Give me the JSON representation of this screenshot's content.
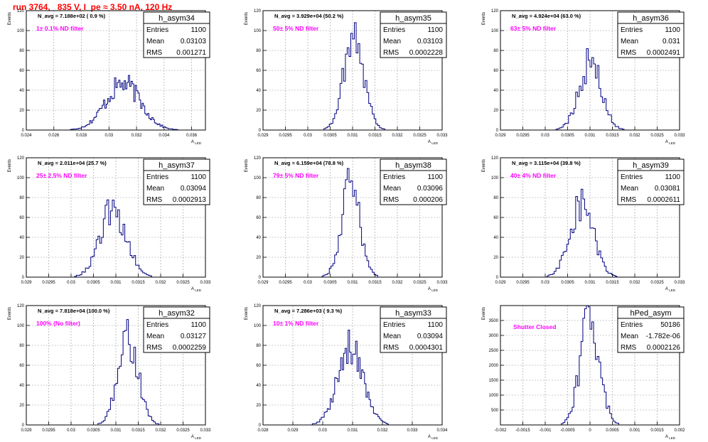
{
  "page": {
    "title": "run 3764,   835 V, I_pe ≈ 3.50 nA, 120 Hz"
  },
  "colors": {
    "title": "#ff0000",
    "histogram": "#000080",
    "annotation": "#ff00ff",
    "grid": "#999999"
  },
  "chart_data": [
    {
      "type": "histogram",
      "name": "h_asym34",
      "title": "",
      "xlabel": "A_LED",
      "ylabel": "Events",
      "xlim": [
        0.024,
        0.037
      ],
      "ylim": [
        0,
        120
      ],
      "x_ticks": [
        "0.024",
        "0.026",
        "0.028",
        "0.03",
        "0.032",
        "0.034",
        "0.036"
      ],
      "x_tick_values": [
        0.024,
        0.026,
        0.028,
        0.03,
        0.032,
        0.034,
        0.036
      ],
      "y_ticks": [
        0,
        20,
        40,
        60,
        80,
        100,
        120
      ],
      "stats": [
        [
          "Entries",
          "1100"
        ],
        [
          "Mean",
          "0.03103"
        ],
        [
          "RMS",
          "0.001271"
        ]
      ],
      "navg": "N_avg = 7.188e+02 ( 0.9 %)",
      "filter": "1± 0.1% ND filter",
      "grid": true,
      "mean": 0.03103,
      "rms": 0.001271,
      "peak": 48,
      "n_bins": 130
    },
    {
      "type": "histogram",
      "name": "h_asym35",
      "title": "",
      "xlabel": "A_LED",
      "ylabel": "Events",
      "xlim": [
        0.029,
        0.033
      ],
      "ylim": [
        0,
        120
      ],
      "x_ticks": [
        "0.029",
        "0.0295",
        "0.03",
        "0.0305",
        "0.031",
        "0.0315",
        "0.032",
        "0.0325",
        "0.033"
      ],
      "x_tick_values": [
        0.029,
        0.0295,
        0.03,
        0.0305,
        0.031,
        0.0315,
        0.032,
        0.0325,
        0.033
      ],
      "y_ticks": [
        0,
        20,
        40,
        60,
        80,
        100,
        120
      ],
      "stats": [
        [
          "Entries",
          "1100"
        ],
        [
          "Mean",
          "0.03103"
        ],
        [
          "RMS",
          "0.0002228"
        ]
      ],
      "navg": "N_avg = 3.929e+04 (50.2 %)",
      "filter": "50± 5% ND filter",
      "grid": true,
      "mean": 0.03103,
      "rms": 0.0002228,
      "peak": 100,
      "n_bins": 100
    },
    {
      "type": "histogram",
      "name": "h_asym36",
      "title": "",
      "xlabel": "A_LED",
      "ylabel": "Events",
      "xlim": [
        0.029,
        0.033
      ],
      "ylim": [
        0,
        120
      ],
      "x_ticks": [
        "0.029",
        "0.0295",
        "0.03",
        "0.0305",
        "0.031",
        "0.0315",
        "0.032",
        "0.0325",
        "0.033"
      ],
      "x_tick_values": [
        0.029,
        0.0295,
        0.03,
        0.0305,
        0.031,
        0.0315,
        0.032,
        0.0325,
        0.033
      ],
      "y_ticks": [
        0,
        20,
        40,
        60,
        80,
        100,
        120
      ],
      "stats": [
        [
          "Entries",
          "1100"
        ],
        [
          "Mean",
          "0.031"
        ],
        [
          "RMS",
          "0.0002491"
        ]
      ],
      "navg": "N_avg = 4.924e+04 (63.0 %)",
      "filter": "63± 5% ND filter",
      "grid": true,
      "mean": 0.031,
      "rms": 0.0002491,
      "peak": 70,
      "n_bins": 100
    },
    {
      "type": "histogram",
      "name": "h_asym37",
      "title": "",
      "xlabel": "A_LED",
      "ylabel": "Events",
      "xlim": [
        0.029,
        0.033
      ],
      "ylim": [
        0,
        120
      ],
      "x_ticks": [
        "0.029",
        "0.0295",
        "0.03",
        "0.0305",
        "0.031",
        "0.0315",
        "0.032",
        "0.0325",
        "0.033"
      ],
      "x_tick_values": [
        0.029,
        0.0295,
        0.03,
        0.0305,
        0.031,
        0.0315,
        0.032,
        0.0325,
        0.033
      ],
      "y_ticks": [
        0,
        20,
        40,
        60,
        80,
        100,
        120
      ],
      "stats": [
        [
          "Entries",
          "1100"
        ],
        [
          "Mean",
          "0.03094"
        ],
        [
          "RMS",
          "0.0002913"
        ]
      ],
      "navg": "N_avg = 2.011e+04 (25.7 %)",
      "filter": "25± 2.5% ND filter",
      "grid": true,
      "mean": 0.03094,
      "rms": 0.0002913,
      "peak": 70,
      "n_bins": 100
    },
    {
      "type": "histogram",
      "name": "h_asym38",
      "title": "",
      "xlabel": "A_LED",
      "ylabel": "Events",
      "xlim": [
        0.029,
        0.033
      ],
      "ylim": [
        0,
        120
      ],
      "x_ticks": [
        "0.029",
        "0.0295",
        "0.03",
        "0.0305",
        "0.031",
        "0.0315",
        "0.032",
        "0.0325",
        "0.033"
      ],
      "x_tick_values": [
        0.029,
        0.0295,
        0.03,
        0.0305,
        0.031,
        0.0315,
        0.032,
        0.0325,
        0.033
      ],
      "y_ticks": [
        0,
        20,
        40,
        60,
        80,
        100,
        120
      ],
      "stats": [
        [
          "Entries",
          "1100"
        ],
        [
          "Mean",
          "0.03096"
        ],
        [
          "RMS",
          "0.000206"
        ]
      ],
      "navg": "N_avg = 6.159e+04 (78.8 %)",
      "filter": "79± 5% ND filter",
      "grid": true,
      "mean": 0.03096,
      "rms": 0.000206,
      "peak": 95,
      "n_bins": 100
    },
    {
      "type": "histogram",
      "name": "h_asym39",
      "title": "",
      "xlabel": "A_LED",
      "ylabel": "Events",
      "xlim": [
        0.029,
        0.033
      ],
      "ylim": [
        0,
        120
      ],
      "x_ticks": [
        "0.029",
        "0.0295",
        "0.03",
        "0.0305",
        "0.031",
        "0.0315",
        "0.032",
        "0.0325",
        "0.033"
      ],
      "x_tick_values": [
        0.029,
        0.0295,
        0.03,
        0.0305,
        0.031,
        0.0315,
        0.032,
        0.0325,
        0.033
      ],
      "y_ticks": [
        0,
        20,
        40,
        60,
        80,
        100,
        120
      ],
      "stats": [
        [
          "Entries",
          "1100"
        ],
        [
          "Mean",
          "0.03081"
        ],
        [
          "RMS",
          "0.0002611"
        ]
      ],
      "navg": "N_avg = 3.115e+04 (39.8 %)",
      "filter": "40± 4% ND filter",
      "grid": true,
      "mean": 0.03081,
      "rms": 0.0002611,
      "peak": 77,
      "n_bins": 100
    },
    {
      "type": "histogram",
      "name": "h_asym32",
      "title": "",
      "xlabel": "A_LED",
      "ylabel": "Events",
      "xlim": [
        0.029,
        0.033
      ],
      "ylim": [
        0,
        120
      ],
      "x_ticks": [
        "0.029",
        "0.0295",
        "0.03",
        "0.0305",
        "0.031",
        "0.0315",
        "0.032",
        "0.0325",
        "0.033"
      ],
      "x_tick_values": [
        0.029,
        0.0295,
        0.03,
        0.0305,
        0.031,
        0.0315,
        0.032,
        0.0325,
        0.033
      ],
      "y_ticks": [
        0,
        20,
        40,
        60,
        80,
        100,
        120
      ],
      "stats": [
        [
          "Entries",
          "1100"
        ],
        [
          "Mean",
          "0.03127"
        ],
        [
          "RMS",
          "0.0002259"
        ]
      ],
      "navg": "N_avg = 7.818e+04 (100.0 %)",
      "filter": "100% (No filter)",
      "grid": true,
      "mean": 0.03127,
      "rms": 0.0002259,
      "peak": 88,
      "n_bins": 100
    },
    {
      "type": "histogram",
      "name": "h_asym33",
      "title": "",
      "xlabel": "A_LED",
      "ylabel": "Events",
      "xlim": [
        0.028,
        0.034
      ],
      "ylim": [
        0,
        120
      ],
      "x_ticks": [
        "0.028",
        "0.029",
        "0.03",
        "0.031",
        "0.032",
        "0.033",
        "0.034"
      ],
      "x_tick_values": [
        0.028,
        0.029,
        0.03,
        0.031,
        0.032,
        0.033,
        0.034
      ],
      "y_ticks": [
        0,
        20,
        40,
        60,
        80,
        100,
        120
      ],
      "stats": [
        [
          "Entries",
          "1100"
        ],
        [
          "Mean",
          "0.03094"
        ],
        [
          "RMS",
          "0.0004301"
        ]
      ],
      "navg": "N_avg = 7.286e+03 ( 9.3 %)",
      "filter": "10± 1% ND filter",
      "grid": true,
      "mean": 0.03094,
      "rms": 0.0004301,
      "peak": 80,
      "n_bins": 120
    },
    {
      "type": "histogram",
      "name": "hPed_asym",
      "title": "",
      "xlabel": "A_LED",
      "ylabel": "Events",
      "xlim": [
        -0.002,
        0.002
      ],
      "ylim": [
        0,
        4000
      ],
      "x_ticks": [
        "-0.002",
        "-0.0015",
        "-0.001",
        "-0.0005",
        "0",
        "0.0005",
        "0.001",
        "0.0015",
        "0.002"
      ],
      "x_tick_values": [
        -0.002,
        -0.0015,
        -0.001,
        -0.0005,
        0,
        0.0005,
        0.001,
        0.0015,
        0.002
      ],
      "y_ticks": [
        500,
        1000,
        1500,
        2000,
        2500,
        3000,
        3500
      ],
      "stats": [
        [
          "Entries",
          "50186"
        ],
        [
          "Mean",
          "-1.782e-06"
        ],
        [
          "RMS",
          "0.0002126"
        ]
      ],
      "navg": "",
      "filter": "Shutter Closed",
      "grid": true,
      "mean": -1.782e-06,
      "rms": 0.0002126,
      "peak": 3750,
      "n_bins": 100
    }
  ]
}
